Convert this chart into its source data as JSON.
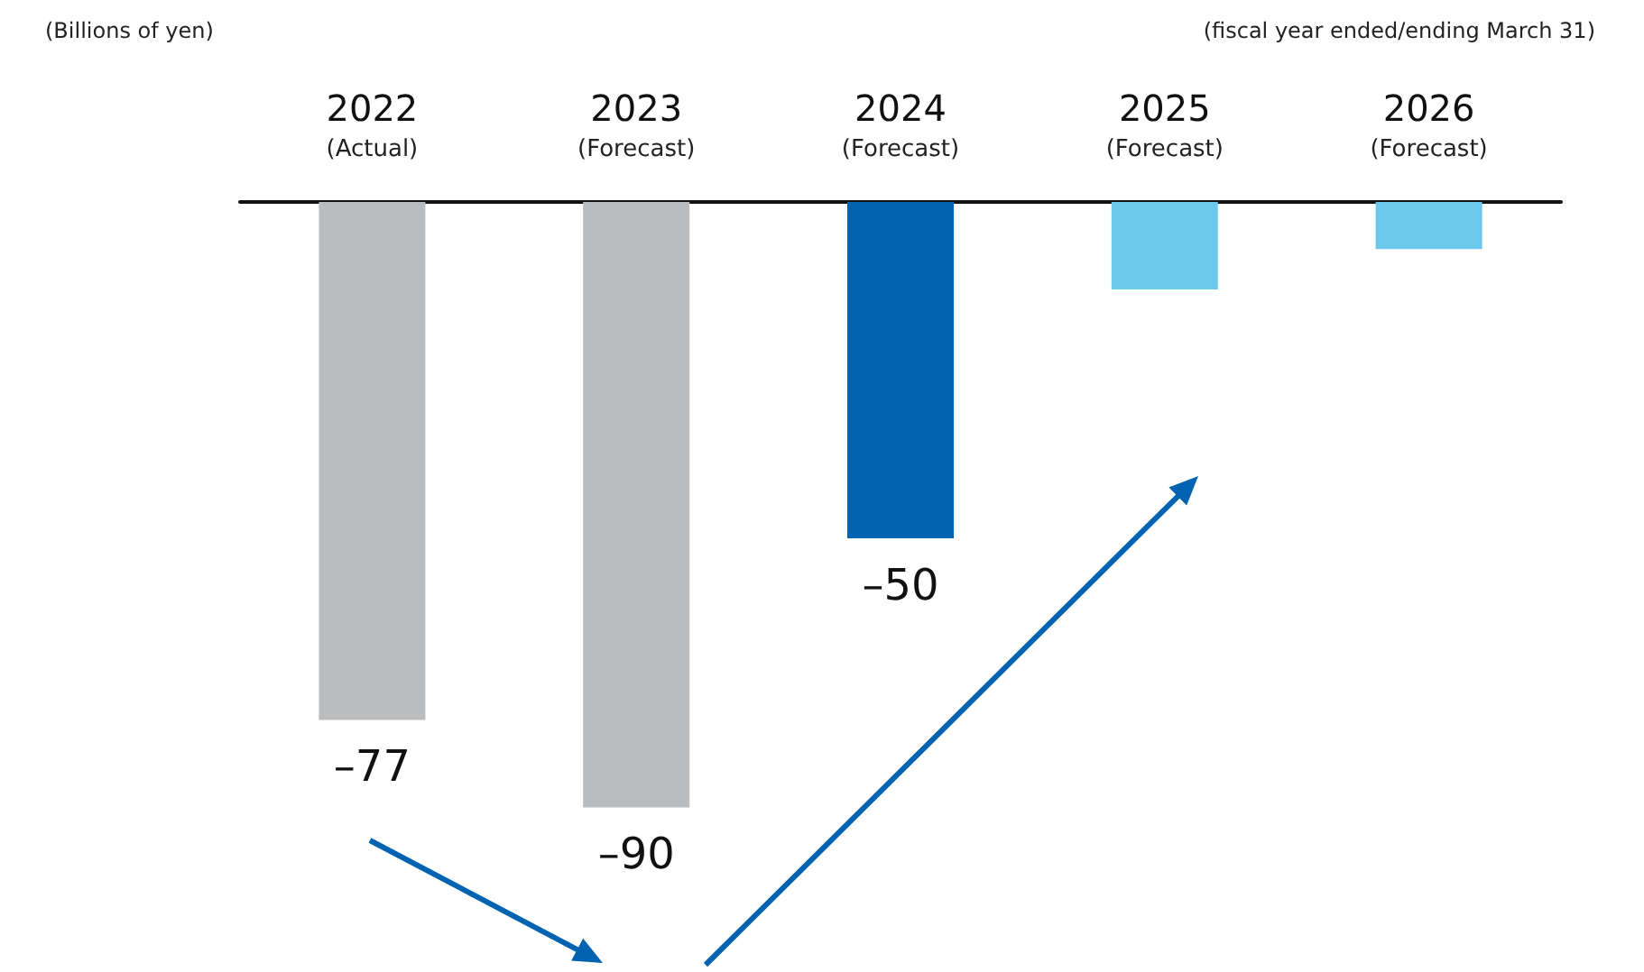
{
  "chart_data": {
    "type": "bar",
    "categories": [
      "2022\n(Actual)",
      "2023\n(Forecast)",
      "2024\n(Forecast)",
      "2025\n(Forecast)",
      "2026\n(Forecast)"
    ],
    "values": [
      -77,
      -90,
      -50,
      -13,
      -7
    ],
    "value_labels": [
      "–77",
      "–90",
      "–50",
      null,
      null
    ],
    "colors": [
      "#bbbcbe",
      "#bbbcbe",
      "#0063b1",
      "#6cc8ea",
      "#6cc8ea"
    ],
    "annotations": [
      "(Billions of yen)",
      "(fiscal year ended/ending March 31)"
    ],
    "grid": false
  }
}
